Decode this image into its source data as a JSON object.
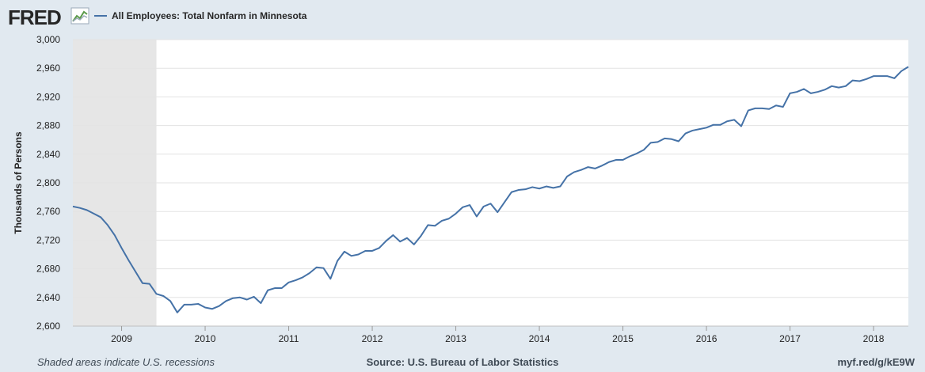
{
  "header": {
    "logo_text": "FRED",
    "series_label": "All Employees: Total Nonfarm in Minnesota"
  },
  "footer": {
    "recession_note": "Shaded areas indicate U.S. recessions",
    "source": "Source: U.S. Bureau of Labor Statistics",
    "short_url": "myf.red/g/kE9W"
  },
  "colors": {
    "background": "#e1e9f0",
    "plot_bg": "#ffffff",
    "line": "#4572a7",
    "recession": "#e6e6e6",
    "grid": "#e3e3e3"
  },
  "chart_data": {
    "type": "line",
    "title": "All Employees: Total Nonfarm in Minnesota",
    "xlabel": "",
    "ylabel": "Thousands of Persons",
    "xlim": [
      2008.4167,
      2018.4167
    ],
    "ylim": [
      2600,
      3000
    ],
    "y_ticks": [
      2600,
      2640,
      2680,
      2720,
      2760,
      2800,
      2840,
      2880,
      2920,
      2960,
      3000
    ],
    "y_tick_labels": [
      "2,600",
      "2,640",
      "2,680",
      "2,720",
      "2,760",
      "2,800",
      "2,840",
      "2,880",
      "2,920",
      "2,960",
      "3,000"
    ],
    "x_ticks": [
      2009,
      2010,
      2011,
      2012,
      2013,
      2014,
      2015,
      2016,
      2017,
      2018
    ],
    "x_tick_labels": [
      "2009",
      "2010",
      "2011",
      "2012",
      "2013",
      "2014",
      "2015",
      "2016",
      "2017",
      "2018"
    ],
    "recessions": [
      [
        2008.4167,
        2009.4167
      ]
    ],
    "grid": true,
    "series": [
      {
        "name": "All Employees: Total Nonfarm in Minnesota",
        "start": 2008.4167,
        "step": 0.08333,
        "values": [
          2767,
          2765,
          2762,
          2757,
          2752,
          2741,
          2727,
          2709,
          2692,
          2676,
          2660,
          2659,
          2645,
          2642,
          2635,
          2619,
          2630,
          2630,
          2631,
          2626,
          2624,
          2628,
          2635,
          2639,
          2640,
          2637,
          2641,
          2632,
          2650,
          2653,
          2653,
          2661,
          2664,
          2668,
          2674,
          2682,
          2681,
          2666,
          2691,
          2704,
          2698,
          2700,
          2705,
          2705,
          2709,
          2719,
          2727,
          2718,
          2723,
          2714,
          2726,
          2741,
          2740,
          2747,
          2750,
          2757,
          2766,
          2769,
          2753,
          2767,
          2771,
          2759,
          2773,
          2787,
          2790,
          2791,
          2794,
          2792,
          2795,
          2793,
          2795,
          2809,
          2815,
          2818,
          2822,
          2820,
          2824,
          2829,
          2832,
          2832,
          2837,
          2841,
          2846,
          2856,
          2857,
          2862,
          2861,
          2858,
          2869,
          2873,
          2875,
          2877,
          2881,
          2881,
          2886,
          2888,
          2879,
          2901,
          2904,
          2904,
          2903,
          2908,
          2906,
          2925,
          2927,
          2931,
          2925,
          2927,
          2930,
          2935,
          2933,
          2935,
          2943,
          2942,
          2945,
          2949,
          2949,
          2949,
          2946,
          2956,
          2962
        ]
      }
    ]
  }
}
